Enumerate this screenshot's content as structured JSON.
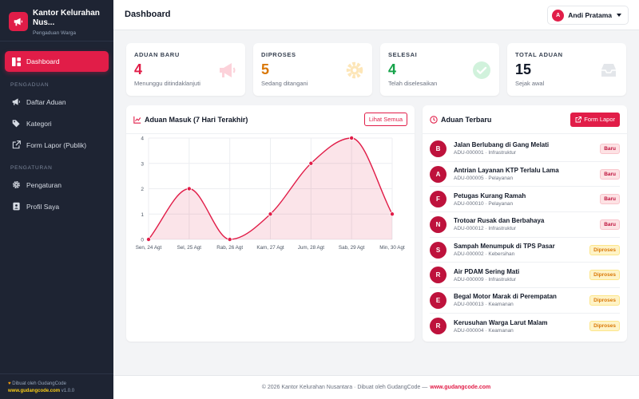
{
  "brand": {
    "title_line1": "Kantor Kelurahan",
    "title_line2": "Nus...",
    "subtitle": "Pengaduan Warga"
  },
  "sidebar": {
    "active_item": "Dashboard",
    "section_pengaduan": "PENGADUAN",
    "section_pengaturan": "PENGATURAN",
    "items": {
      "daftar_aduan": "Daftar Aduan",
      "kategori": "Kategori",
      "form_lapor": "Form Lapor (Publik)",
      "pengaturan": "Pengaturan",
      "profil": "Profil Saya"
    },
    "footer_line1": "Dibuat oleh GudangCode",
    "footer_site": "www.gudangcode.com",
    "footer_version": "v1.0.0"
  },
  "topbar": {
    "title": "Dashboard",
    "user_initial": "A",
    "user_name": "Andi Pratama"
  },
  "stats": [
    {
      "label": "ADUAN BARU",
      "value": "4",
      "desc": "Menunggu ditindaklanjuti",
      "color": "#e11d48",
      "icon": "megaphone-icon"
    },
    {
      "label": "DIPROSES",
      "value": "5",
      "desc": "Sedang ditangani",
      "color": "#d97706",
      "icon": "gear-icon"
    },
    {
      "label": "SELESAI",
      "value": "4",
      "desc": "Telah diselesaikan",
      "color": "#16a34a",
      "icon": "check-circle-icon"
    },
    {
      "label": "TOTAL ADUAN",
      "value": "15",
      "desc": "Sejak awal",
      "color": "#111827",
      "icon": "inbox-icon"
    }
  ],
  "chart_panel": {
    "title": "Aduan Masuk (7 Hari Terakhir)",
    "button": "Lihat Semua"
  },
  "chart_data": {
    "type": "line",
    "categories": [
      "Sen, 24 Agt",
      "Sel, 25 Agt",
      "Rab, 26 Agt",
      "Kam, 27 Agt",
      "Jum, 28 Agt",
      "Sab, 29 Agt",
      "Min, 30 Agt"
    ],
    "series": [
      {
        "values": [
          0,
          2,
          0,
          1,
          3,
          4,
          1
        ],
        "color": "#e11d48"
      }
    ],
    "yticks": [
      "0",
      "1",
      "2",
      "3",
      "4"
    ],
    "ylim": [
      0,
      4
    ],
    "grid": true,
    "fill": "area"
  },
  "recent_panel": {
    "title": "Aduan Terbaru",
    "button": "Form Lapor"
  },
  "recent": [
    {
      "initial": "B",
      "title": "Jalan Berlubang di Gang Melati",
      "meta": "ADU-000001 · Infrastruktur",
      "status": "Baru"
    },
    {
      "initial": "A",
      "title": "Antrian Layanan KTP Terlalu Lama",
      "meta": "ADU-000005 · Pelayanan",
      "status": "Baru"
    },
    {
      "initial": "F",
      "title": "Petugas Kurang Ramah",
      "meta": "ADU-000010 · Pelayanan",
      "status": "Baru"
    },
    {
      "initial": "N",
      "title": "Trotoar Rusak dan Berbahaya",
      "meta": "ADU-000012 · Infrastruktur",
      "status": "Baru"
    },
    {
      "initial": "S",
      "title": "Sampah Menumpuk di TPS Pasar",
      "meta": "ADU-000002 · Kebersihan",
      "status": "Diproses"
    },
    {
      "initial": "R",
      "title": "Air PDAM Sering Mati",
      "meta": "ADU-000009 · Infrastruktur",
      "status": "Diproses"
    },
    {
      "initial": "E",
      "title": "Begal Motor Marak di Perempatan",
      "meta": "ADU-000013 · Keamanan",
      "status": "Diproses"
    },
    {
      "initial": "R",
      "title": "Kerusuhan Warga Larut Malam",
      "meta": "ADU-000004 · Keamanan",
      "status": "Diproses"
    }
  ],
  "footer": {
    "text": "© 2026 Kantor Kelurahan Nusantara · Dibuat oleh GudangCode —",
    "link": "www.gudangcode.com"
  }
}
